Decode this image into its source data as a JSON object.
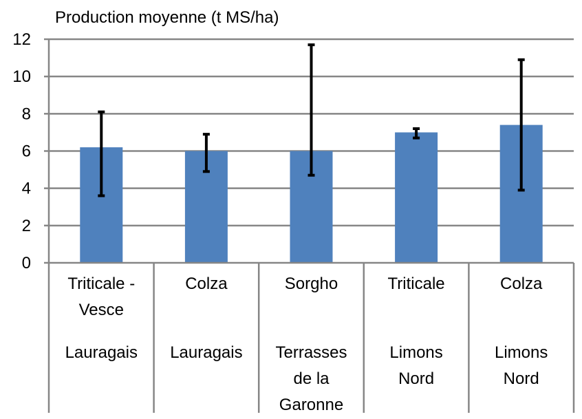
{
  "chart_data": {
    "type": "bar",
    "title": "",
    "xlabel": "",
    "ylabel": "Production moyenne (t MS/ha)",
    "ylim": [
      0,
      12
    ],
    "yticks": [
      0,
      2,
      4,
      6,
      8,
      10,
      12
    ],
    "grid": true,
    "categories": [
      {
        "crop": [
          "Triticale -",
          "Vesce"
        ],
        "site": [
          "Lauragais"
        ]
      },
      {
        "crop": [
          "Colza"
        ],
        "site": [
          "Lauragais"
        ]
      },
      {
        "crop": [
          "Sorgho"
        ],
        "site": [
          "Terrasses",
          "de la",
          "Garonne"
        ]
      },
      {
        "crop": [
          "Triticale"
        ],
        "site": [
          "Limons",
          "Nord"
        ]
      },
      {
        "crop": [
          "Colza"
        ],
        "site": [
          "Limons",
          "Nord"
        ]
      }
    ],
    "values": [
      6.2,
      6.0,
      6.0,
      7.0,
      7.4
    ],
    "error_bars": [
      {
        "low": 3.6,
        "high": 8.1
      },
      {
        "low": 4.9,
        "high": 6.9
      },
      {
        "low": 4.7,
        "high": 11.7
      },
      {
        "low": 6.7,
        "high": 7.2
      },
      {
        "low": 3.9,
        "high": 10.9
      }
    ],
    "colors": {
      "bar": "#4F81BD",
      "error_bar": "#000000",
      "grid": "#868686",
      "axis": "#868686",
      "text": "#000000"
    }
  }
}
